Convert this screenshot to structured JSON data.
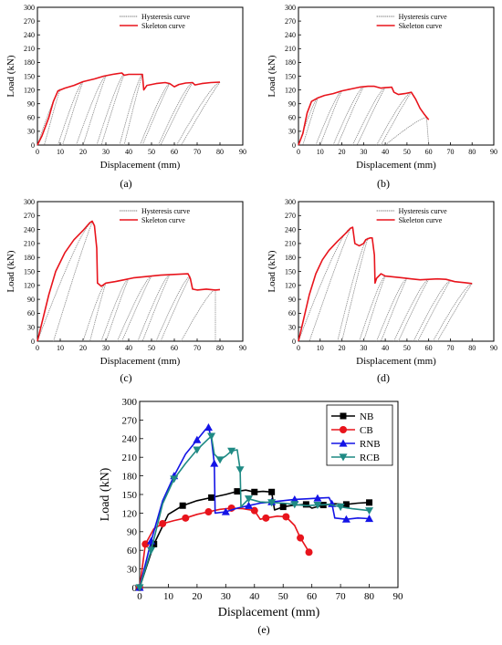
{
  "chart_data": [
    {
      "id": "a",
      "type": "line",
      "caption": "(a)",
      "xlabel": "Displacement (mm)",
      "ylabel": "Load (kN)",
      "xlim": [
        0,
        90
      ],
      "ylim": [
        0,
        300
      ],
      "xticks": [
        0,
        10,
        20,
        30,
        40,
        50,
        60,
        70,
        80,
        90
      ],
      "yticks": [
        0,
        30,
        60,
        90,
        120,
        150,
        180,
        210,
        240,
        270,
        300
      ],
      "legend": [
        {
          "label": "Hysteresis curve",
          "color": "#7a7a7a"
        },
        {
          "label": "Skeleton curve",
          "color": "#e8141c"
        }
      ],
      "skeleton": [
        [
          0,
          0
        ],
        [
          2,
          20
        ],
        [
          5,
          60
        ],
        [
          7,
          95
        ],
        [
          9,
          118
        ],
        [
          12,
          124
        ],
        [
          16,
          130
        ],
        [
          20,
          138
        ],
        [
          25,
          144
        ],
        [
          29,
          150
        ],
        [
          33,
          154
        ],
        [
          37,
          157
        ],
        [
          38,
          152
        ],
        [
          40,
          154
        ],
        [
          43,
          154
        ],
        [
          46,
          154
        ],
        [
          46.6,
          120
        ],
        [
          48,
          130
        ],
        [
          52,
          134
        ],
        [
          56,
          136
        ],
        [
          58,
          134
        ],
        [
          60,
          127
        ],
        [
          62,
          132
        ],
        [
          65,
          135
        ],
        [
          68,
          136
        ],
        [
          69,
          131
        ],
        [
          72,
          134
        ],
        [
          76,
          136
        ],
        [
          80,
          137
        ]
      ],
      "loops": [
        {
          "u": 0,
          "ul": 3,
          "peak": [
            10,
            122
          ]
        },
        {
          "u": 9,
          "ul": 11,
          "peak": [
            20,
            138
          ]
        },
        {
          "u": 17,
          "ul": 20,
          "peak": [
            30,
            150
          ]
        },
        {
          "u": 26,
          "ul": 28,
          "peak": [
            38,
            154
          ]
        },
        {
          "u": 36,
          "ul": 38,
          "peak": [
            46,
            154
          ]
        },
        {
          "u": 45,
          "ul": 46,
          "peak": [
            58,
            134
          ]
        },
        {
          "u": 53,
          "ul": 54,
          "peak": [
            68,
            136
          ]
        },
        {
          "u": 61,
          "ul": 63,
          "peak": [
            80,
            137
          ]
        }
      ]
    },
    {
      "id": "b",
      "type": "line",
      "caption": "(b)",
      "xlabel": "Displacement (mm)",
      "ylabel": "Load (kN)",
      "xlim": [
        0,
        90
      ],
      "ylim": [
        0,
        300
      ],
      "xticks": [
        0,
        10,
        20,
        30,
        40,
        50,
        60,
        70,
        80,
        90
      ],
      "yticks": [
        0,
        30,
        60,
        90,
        120,
        150,
        180,
        210,
        240,
        270,
        300
      ],
      "legend": [
        {
          "label": "Hysteresis curve",
          "color": "#7a7a7a"
        },
        {
          "label": "Skeleton curve",
          "color": "#e8141c"
        }
      ],
      "skeleton": [
        [
          0,
          0
        ],
        [
          2,
          25
        ],
        [
          4,
          70
        ],
        [
          6,
          95
        ],
        [
          9,
          103
        ],
        [
          12,
          108
        ],
        [
          16,
          112
        ],
        [
          20,
          118
        ],
        [
          24,
          122
        ],
        [
          28,
          126
        ],
        [
          32,
          128
        ],
        [
          35,
          128
        ],
        [
          38,
          124
        ],
        [
          40,
          125
        ],
        [
          43,
          126
        ],
        [
          44,
          115
        ],
        [
          46,
          110
        ],
        [
          49,
          112
        ],
        [
          52,
          115
        ],
        [
          54,
          100
        ],
        [
          56,
          80
        ],
        [
          58,
          67
        ],
        [
          60,
          55
        ]
      ],
      "loops": [
        {
          "u": 0,
          "ul": 2,
          "peak": [
            9,
            103
          ]
        },
        {
          "u": 8,
          "ul": 10,
          "peak": [
            20,
            118
          ]
        },
        {
          "u": 16,
          "ul": 18,
          "peak": [
            30,
            127
          ]
        },
        {
          "u": 25,
          "ul": 27,
          "peak": [
            40,
            125
          ]
        },
        {
          "u": 36,
          "ul": 38,
          "peak": [
            52,
            115
          ]
        },
        {
          "u": 40,
          "ul": 60,
          "peak": [
            59,
            60
          ]
        }
      ]
    },
    {
      "id": "c",
      "type": "line",
      "caption": "(c)",
      "xlabel": "Displacement (mm)",
      "ylabel": "Load (kN)",
      "xlim": [
        0,
        90
      ],
      "ylim": [
        0,
        300
      ],
      "xticks": [
        0,
        10,
        20,
        30,
        40,
        50,
        60,
        70,
        80,
        90
      ],
      "yticks": [
        0,
        30,
        60,
        90,
        120,
        150,
        180,
        210,
        240,
        270,
        300
      ],
      "legend": [
        {
          "label": "Hysteresis curve",
          "color": "#7a7a7a"
        },
        {
          "label": "Skeleton curve",
          "color": "#e8141c"
        }
      ],
      "skeleton": [
        [
          0,
          0
        ],
        [
          2,
          40
        ],
        [
          5,
          100
        ],
        [
          8,
          150
        ],
        [
          12,
          190
        ],
        [
          16,
          218
        ],
        [
          20,
          238
        ],
        [
          23,
          255
        ],
        [
          24,
          258
        ],
        [
          25,
          248
        ],
        [
          26,
          200
        ],
        [
          26.3,
          125
        ],
        [
          28,
          118
        ],
        [
          30,
          125
        ],
        [
          34,
          128
        ],
        [
          38,
          132
        ],
        [
          42,
          136
        ],
        [
          46,
          138
        ],
        [
          50,
          140
        ],
        [
          54,
          142
        ],
        [
          58,
          143
        ],
        [
          62,
          144
        ],
        [
          66,
          145
        ],
        [
          67,
          135
        ],
        [
          68,
          112
        ],
        [
          70,
          110
        ],
        [
          74,
          112
        ],
        [
          78,
          110
        ],
        [
          80,
          111
        ]
      ],
      "loops": [
        {
          "u": 0,
          "ul": 7,
          "peak": [
            24,
            256
          ]
        },
        {
          "u": 20,
          "ul": 23,
          "peak": [
            30,
            125
          ]
        },
        {
          "u": 28,
          "ul": 30,
          "peak": [
            40,
            135
          ]
        },
        {
          "u": 35,
          "ul": 37,
          "peak": [
            50,
            140
          ]
        },
        {
          "u": 44,
          "ul": 46,
          "peak": [
            58,
            143
          ]
        },
        {
          "u": 52,
          "ul": 54,
          "peak": [
            67,
            140
          ]
        },
        {
          "u": 63,
          "ul": 78,
          "peak": [
            78,
            111
          ]
        }
      ]
    },
    {
      "id": "d",
      "type": "line",
      "caption": "(d)",
      "xlabel": "Displacement (mm)",
      "ylabel": "Load (kN)",
      "xlim": [
        0,
        90
      ],
      "ylim": [
        0,
        300
      ],
      "xticks": [
        0,
        10,
        20,
        30,
        40,
        50,
        60,
        70,
        80,
        90
      ],
      "yticks": [
        0,
        30,
        60,
        90,
        120,
        150,
        180,
        210,
        240,
        270,
        300
      ],
      "legend": [
        {
          "label": "Hysteresis curve",
          "color": "#7a7a7a"
        },
        {
          "label": "Skeleton curve",
          "color": "#e8141c"
        }
      ],
      "skeleton": [
        [
          0,
          0
        ],
        [
          2,
          40
        ],
        [
          5,
          100
        ],
        [
          8,
          145
        ],
        [
          11,
          175
        ],
        [
          14,
          195
        ],
        [
          18,
          215
        ],
        [
          22,
          233
        ],
        [
          24,
          243
        ],
        [
          25,
          245
        ],
        [
          26,
          210
        ],
        [
          28,
          205
        ],
        [
          30,
          210
        ],
        [
          31,
          218
        ],
        [
          33,
          222
        ],
        [
          34,
          222
        ],
        [
          35,
          185
        ],
        [
          35.3,
          125
        ],
        [
          36,
          135
        ],
        [
          38,
          145
        ],
        [
          40,
          140
        ],
        [
          44,
          138
        ],
        [
          48,
          136
        ],
        [
          52,
          134
        ],
        [
          56,
          132
        ],
        [
          60,
          133
        ],
        [
          64,
          134
        ],
        [
          68,
          133
        ],
        [
          72,
          128
        ],
        [
          76,
          126
        ],
        [
          80,
          124
        ]
      ],
      "loops": [
        {
          "u": 0,
          "ul": 5,
          "peak": [
            24,
            243
          ]
        },
        {
          "u": 18,
          "ul": 20,
          "peak": [
            32,
            222
          ]
        },
        {
          "u": 28,
          "ul": 30,
          "peak": [
            40,
            140
          ]
        },
        {
          "u": 36,
          "ul": 38,
          "peak": [
            50,
            135
          ]
        },
        {
          "u": 44,
          "ul": 46,
          "peak": [
            60,
            133
          ]
        },
        {
          "u": 53,
          "ul": 55,
          "peak": [
            70,
            130
          ]
        },
        {
          "u": 62,
          "ul": 64,
          "peak": [
            80,
            124
          ]
        }
      ]
    },
    {
      "id": "e",
      "type": "line",
      "caption": "(e)",
      "xlabel": "Displacement (mm)",
      "ylabel": "Load (kN)",
      "xlim": [
        0,
        90
      ],
      "ylim": [
        0,
        300
      ],
      "xticks": [
        0,
        10,
        20,
        30,
        40,
        50,
        60,
        70,
        80,
        90
      ],
      "yticks": [
        0,
        30,
        60,
        90,
        120,
        150,
        180,
        210,
        240,
        270,
        300
      ],
      "legend_position": "top-right",
      "series": [
        {
          "name": "NB",
          "color": "#000000",
          "marker": "square",
          "points": [
            [
              0,
              0
            ],
            [
              5,
              70
            ],
            [
              10,
              118
            ],
            [
              15,
              132
            ],
            [
              20,
              140
            ],
            [
              25,
              145
            ],
            [
              30,
              150
            ],
            [
              34,
              155
            ],
            [
              37,
              157
            ],
            [
              40,
              154
            ],
            [
              43,
              155
            ],
            [
              46,
              154
            ],
            [
              47,
              125
            ],
            [
              50,
              130
            ],
            [
              54,
              133
            ],
            [
              58,
              134
            ],
            [
              60,
              128
            ],
            [
              64,
              133
            ],
            [
              68,
              135
            ],
            [
              72,
              134
            ],
            [
              76,
              136
            ],
            [
              80,
              137
            ]
          ]
        },
        {
          "name": "CB",
          "color": "#e8141c",
          "marker": "circle",
          "points": [
            [
              0,
              0
            ],
            [
              2,
              70
            ],
            [
              5,
              95
            ],
            [
              8,
              103
            ],
            [
              12,
              108
            ],
            [
              16,
              112
            ],
            [
              20,
              118
            ],
            [
              24,
              122
            ],
            [
              28,
              126
            ],
            [
              32,
              128
            ],
            [
              36,
              127
            ],
            [
              40,
              124
            ],
            [
              42,
              110
            ],
            [
              44,
              112
            ],
            [
              48,
              115
            ],
            [
              51,
              114
            ],
            [
              54,
              100
            ],
            [
              56,
              80
            ],
            [
              58,
              65
            ],
            [
              59,
              57
            ]
          ]
        },
        {
          "name": "RNB",
          "color": "#1414e6",
          "marker": "triangle-up",
          "points": [
            [
              0,
              0
            ],
            [
              4,
              75
            ],
            [
              8,
              140
            ],
            [
              12,
              180
            ],
            [
              16,
              215
            ],
            [
              20,
              238
            ],
            [
              23,
              255
            ],
            [
              24,
              258
            ],
            [
              25,
              240
            ],
            [
              26,
              200
            ],
            [
              26.3,
              120
            ],
            [
              30,
              122
            ],
            [
              34,
              128
            ],
            [
              38,
              132
            ],
            [
              42,
              136
            ],
            [
              46,
              138
            ],
            [
              50,
              140
            ],
            [
              54,
              142
            ],
            [
              58,
              143
            ],
            [
              62,
              144
            ],
            [
              66,
              145
            ],
            [
              67,
              135
            ],
            [
              68,
              112
            ],
            [
              72,
              110
            ],
            [
              76,
              112
            ],
            [
              80,
              111
            ]
          ]
        },
        {
          "name": "RCB",
          "color": "#1f8a84",
          "marker": "triangle-down",
          "points": [
            [
              0,
              0
            ],
            [
              4,
              60
            ],
            [
              8,
              135
            ],
            [
              12,
              175
            ],
            [
              16,
              200
            ],
            [
              20,
              222
            ],
            [
              24,
              240
            ],
            [
              25,
              244
            ],
            [
              26,
              215
            ],
            [
              28,
              206
            ],
            [
              30,
              212
            ],
            [
              32,
              220
            ],
            [
              34,
              222
            ],
            [
              35,
              190
            ],
            [
              35.3,
              130
            ],
            [
              38,
              143
            ],
            [
              42,
              138
            ],
            [
              46,
              137
            ],
            [
              50,
              136
            ],
            [
              54,
              134
            ],
            [
              58,
              132
            ],
            [
              62,
              133
            ],
            [
              66,
              134
            ],
            [
              70,
              130
            ],
            [
              74,
              127
            ],
            [
              80,
              124
            ]
          ]
        }
      ]
    }
  ]
}
